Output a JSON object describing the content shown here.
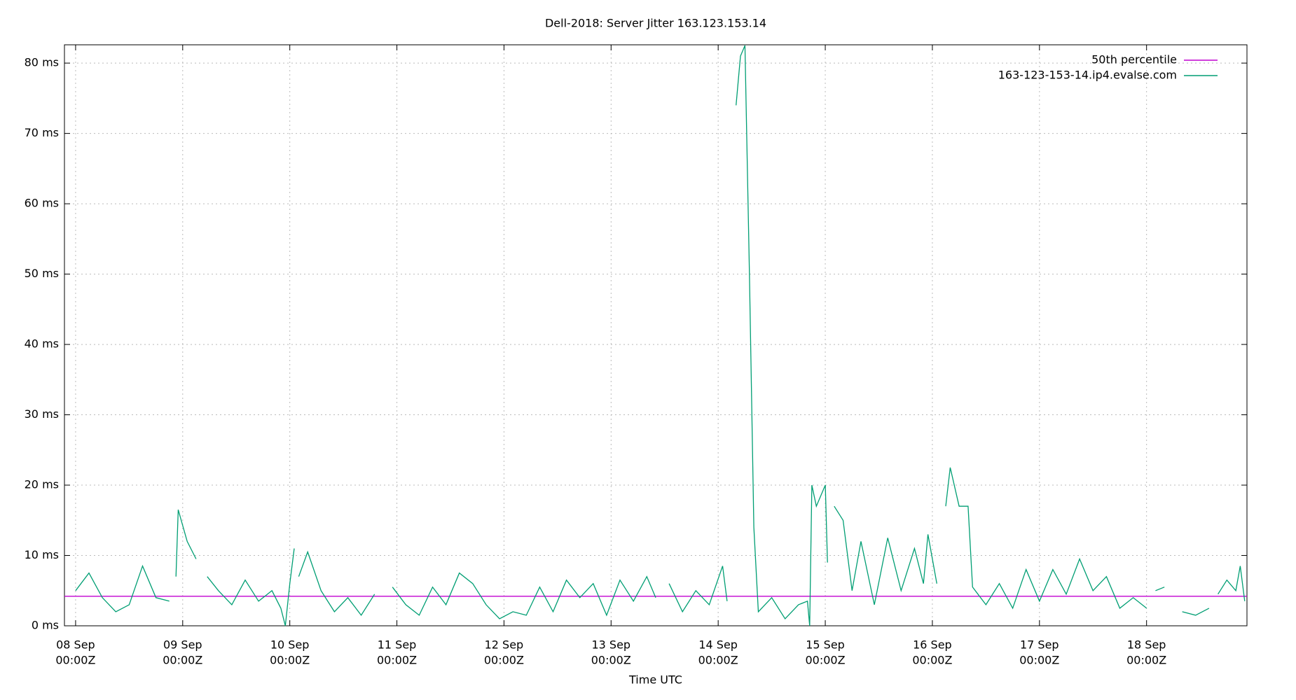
{
  "chart_data": {
    "type": "line",
    "title": "Dell-2018: Server Jitter 163.123.153.14",
    "x_label": "Time UTC",
    "xlim": [
      "09-07 21:30",
      "09-18 22:30"
    ],
    "ylim": [
      0,
      82.6
    ],
    "yticks": [
      {
        "value": 0,
        "label": "0 ms"
      },
      {
        "value": 10,
        "label": "10 ms"
      },
      {
        "value": 20,
        "label": "20 ms"
      },
      {
        "value": 30,
        "label": "30 ms"
      },
      {
        "value": 40,
        "label": "40 ms"
      },
      {
        "value": 50,
        "label": "50 ms"
      },
      {
        "value": 60,
        "label": "60 ms"
      },
      {
        "value": 70,
        "label": "70 ms"
      },
      {
        "value": 80,
        "label": "80 ms"
      }
    ],
    "xticks": [
      {
        "value": "09-08 00:00",
        "label": [
          "08 Sep",
          "00:00Z"
        ]
      },
      {
        "value": "09-09 00:00",
        "label": [
          "09 Sep",
          "00:00Z"
        ]
      },
      {
        "value": "09-10 00:00",
        "label": [
          "10 Sep",
          "00:00Z"
        ]
      },
      {
        "value": "09-11 00:00",
        "label": [
          "11 Sep",
          "00:00Z"
        ]
      },
      {
        "value": "09-12 00:00",
        "label": [
          "12 Sep",
          "00:00Z"
        ]
      },
      {
        "value": "09-13 00:00",
        "label": [
          "13 Sep",
          "00:00Z"
        ]
      },
      {
        "value": "09-14 00:00",
        "label": [
          "14 Sep",
          "00:00Z"
        ]
      },
      {
        "value": "09-15 00:00",
        "label": [
          "15 Sep",
          "00:00Z"
        ]
      },
      {
        "value": "09-16 00:00",
        "label": [
          "16 Sep",
          "00:00Z"
        ]
      },
      {
        "value": "09-17 00:00",
        "label": [
          "17 Sep",
          "00:00Z"
        ]
      },
      {
        "value": "09-18 00:00",
        "label": [
          "18 Sep",
          "00:00Z"
        ]
      }
    ],
    "grid": true,
    "legend": "top-right",
    "series": [
      {
        "name": "50th percentile",
        "color": "#c000d0",
        "x": [
          "09-07 21:30",
          "09-18 22:30"
        ],
        "values": [
          4.2,
          4.2
        ]
      },
      {
        "name": "163-123-153-14.ip4.evalse.com",
        "color": "#009e73",
        "x": [
          "09-08 00:00",
          "09-08 03:00",
          "09-08 06:00",
          "09-08 09:00",
          "09-08 12:00",
          "09-08 15:00",
          "09-08 18:00",
          "09-08 21:00",
          "09-08 22:00",
          "09-08 22:30",
          "09-08 23:00",
          "09-09 01:00",
          "09-09 03:00",
          "09-09 04:00",
          "09-09 05:30",
          "09-09 08:00",
          "09-09 11:00",
          "09-09 14:00",
          "09-09 17:00",
          "09-09 20:00",
          "09-09 22:00",
          "09-09 23:00",
          "09-10 00:00",
          "09-10 01:00",
          "09-10 01:30",
          "09-10 02:00",
          "09-10 04:00",
          "09-10 07:00",
          "09-10 10:00",
          "09-10 13:00",
          "09-10 16:00",
          "09-10 19:00",
          "09-10 20:00",
          "09-10 23:00",
          "09-11 02:00",
          "09-11 05:00",
          "09-11 08:00",
          "09-11 11:00",
          "09-11 14:00",
          "09-11 17:00",
          "09-11 20:00",
          "09-11 23:00",
          "09-12 02:00",
          "09-12 05:00",
          "09-12 08:00",
          "09-12 11:00",
          "09-12 14:00",
          "09-12 17:00",
          "09-12 20:00",
          "09-12 23:00",
          "09-13 02:00",
          "09-13 05:00",
          "09-13 08:00",
          "09-13 10:00",
          "09-13 11:00",
          "09-13 13:00",
          "09-13 16:00",
          "09-13 19:00",
          "09-13 22:00",
          "09-14 01:00",
          "09-14 02:00",
          "09-14 03:00",
          "09-14 04:00",
          "09-14 05:00",
          "09-14 06:00",
          "09-14 07:00",
          "09-14 08:00",
          "09-14 09:00",
          "09-14 12:00",
          "09-14 15:00",
          "09-14 18:00",
          "09-14 20:00",
          "09-14 20:30",
          "09-14 21:00",
          "09-14 22:00",
          "09-15 00:00",
          "09-15 00:30",
          "09-15 01:00",
          "09-15 02:00",
          "09-15 04:00",
          "09-15 06:00",
          "09-15 08:00",
          "09-15 11:00",
          "09-15 14:00",
          "09-15 17:00",
          "09-15 20:00",
          "09-15 22:00",
          "09-15 23:00",
          "09-16 01:00",
          "09-16 01:30",
          "09-16 03:00",
          "09-16 04:00",
          "09-16 06:00",
          "09-16 08:00",
          "09-16 09:00",
          "09-16 12:00",
          "09-16 15:00",
          "09-16 18:00",
          "09-16 21:00",
          "09-17 00:00",
          "09-17 03:00",
          "09-17 06:00",
          "09-17 09:00",
          "09-17 12:00",
          "09-17 15:00",
          "09-17 18:00",
          "09-17 21:00",
          "09-18 00:00",
          "09-18 01:00",
          "09-18 02:00",
          "09-18 04:00",
          "09-18 05:00",
          "09-18 08:00",
          "09-18 11:00",
          "09-18 14:00",
          "09-18 14:30",
          "09-18 16:00",
          "09-18 18:00",
          "09-18 20:00",
          "09-18 21:00",
          "09-18 22:00"
        ],
        "values": [
          5,
          7.5,
          4,
          2,
          3,
          8.5,
          4,
          3.5,
          null,
          7,
          16.5,
          12,
          9.5,
          null,
          7,
          5,
          3,
          6.5,
          3.5,
          5,
          2.5,
          0,
          6,
          11,
          null,
          7,
          10.5,
          5,
          2,
          4,
          1.5,
          4.5,
          null,
          5.5,
          3,
          1.5,
          5.5,
          3,
          7.5,
          6,
          3,
          1,
          2,
          1.5,
          5.5,
          2,
          6.5,
          4,
          6,
          1.5,
          6.5,
          3.5,
          7,
          4,
          null,
          6,
          2,
          5,
          3,
          8.5,
          3.5,
          null,
          74,
          81,
          82.5,
          50,
          14,
          2,
          4,
          1,
          3,
          3.5,
          0,
          20,
          17,
          20,
          9,
          null,
          17,
          15,
          5,
          12,
          3,
          12.5,
          5,
          11,
          6,
          13,
          6,
          null,
          17,
          22.5,
          17,
          17,
          5.5,
          3,
          6,
          2.5,
          8,
          3.5,
          8,
          4.5,
          9.5,
          5,
          7,
          2.5,
          4,
          2.5,
          null,
          5,
          5.5,
          null,
          2,
          1.5,
          2.5,
          null,
          4.5,
          6.5,
          5,
          8.5,
          3.5
        ]
      }
    ]
  }
}
